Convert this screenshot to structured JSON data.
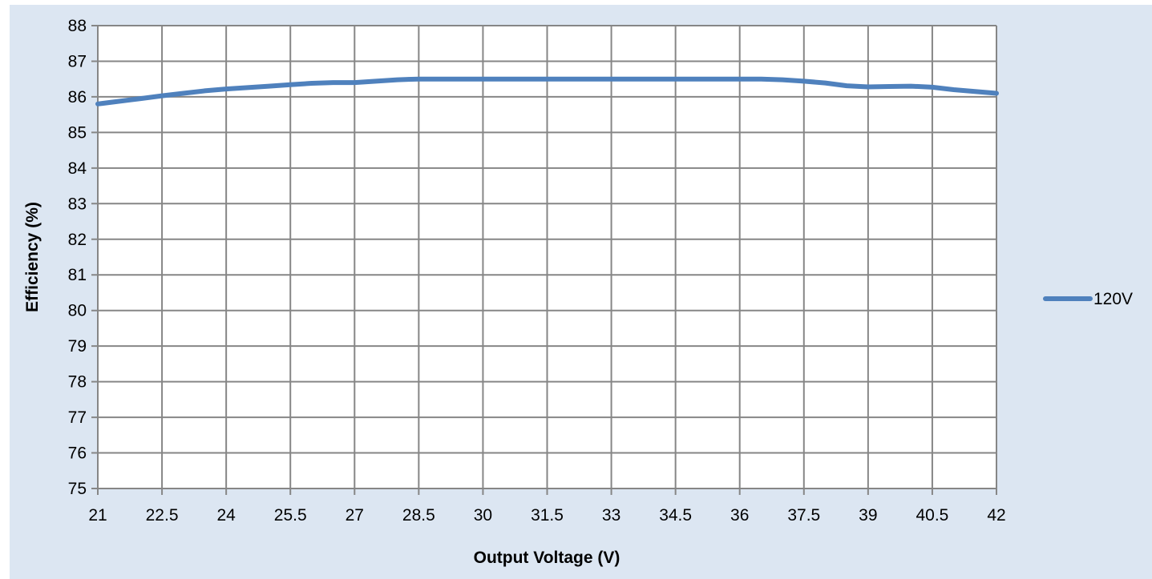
{
  "chart_data": {
    "type": "line",
    "title": "",
    "xlabel": "Output Voltage (V)",
    "ylabel": "Efficiency (%)",
    "xlim": [
      21,
      42
    ],
    "ylim": [
      75,
      88
    ],
    "x_ticks": [
      "21",
      "22.5",
      "24",
      "25.5",
      "27",
      "28.5",
      "30",
      "31.5",
      "33",
      "34.5",
      "36",
      "37.5",
      "39",
      "40.5",
      "42"
    ],
    "y_ticks": [
      "75",
      "76",
      "77",
      "78",
      "79",
      "80",
      "81",
      "82",
      "83",
      "84",
      "85",
      "86",
      "87",
      "88"
    ],
    "grid": true,
    "legend_position": "right",
    "series": [
      {
        "name": "120V",
        "color": "#4f81bd",
        "x": [
          21,
          22,
          22.5,
          23,
          23.5,
          24,
          24.5,
          25,
          25.5,
          26,
          26.5,
          27,
          27.5,
          28,
          28.5,
          29,
          30,
          31,
          32,
          33,
          34,
          35,
          36,
          36.5,
          37,
          37.5,
          38,
          38.5,
          39,
          39.5,
          40,
          40.5,
          41,
          41.5,
          42
        ],
        "y": [
          85.8,
          85.95,
          86.03,
          86.1,
          86.17,
          86.22,
          86.26,
          86.3,
          86.34,
          86.38,
          86.4,
          86.4,
          86.44,
          86.48,
          86.5,
          86.5,
          86.5,
          86.5,
          86.5,
          86.5,
          86.5,
          86.5,
          86.5,
          86.5,
          86.48,
          86.44,
          86.39,
          86.31,
          86.28,
          86.29,
          86.3,
          86.27,
          86.2,
          86.15,
          86.1
        ]
      }
    ]
  }
}
